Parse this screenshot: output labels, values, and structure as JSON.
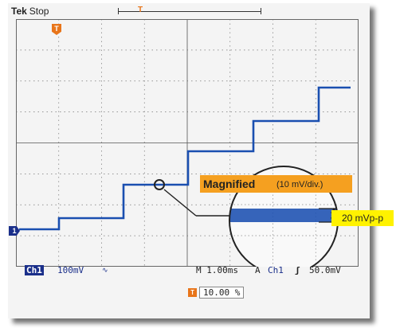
{
  "header": {
    "brand": "Tek",
    "run_state": "Stop",
    "trigger_glyph": "T"
  },
  "channel_marker": "1",
  "status": {
    "channel": "Ch1",
    "volts_per_div": "100mV",
    "timebase": "M 1.00ms",
    "acquire": "A",
    "trigger_source": "Ch1",
    "trigger_slope": "rising-edge-icon",
    "trigger_level": "50.0mV",
    "trigger_position": "10.00 %"
  },
  "callout": {
    "title": "Magnified",
    "scale": "(10 mV/div.)",
    "measurement": "20 mVp-p"
  },
  "colors": {
    "trace": "#1a4fb0",
    "trigger": "#e8751a",
    "callout": "#f5a020",
    "measurement": "#fff200"
  }
}
